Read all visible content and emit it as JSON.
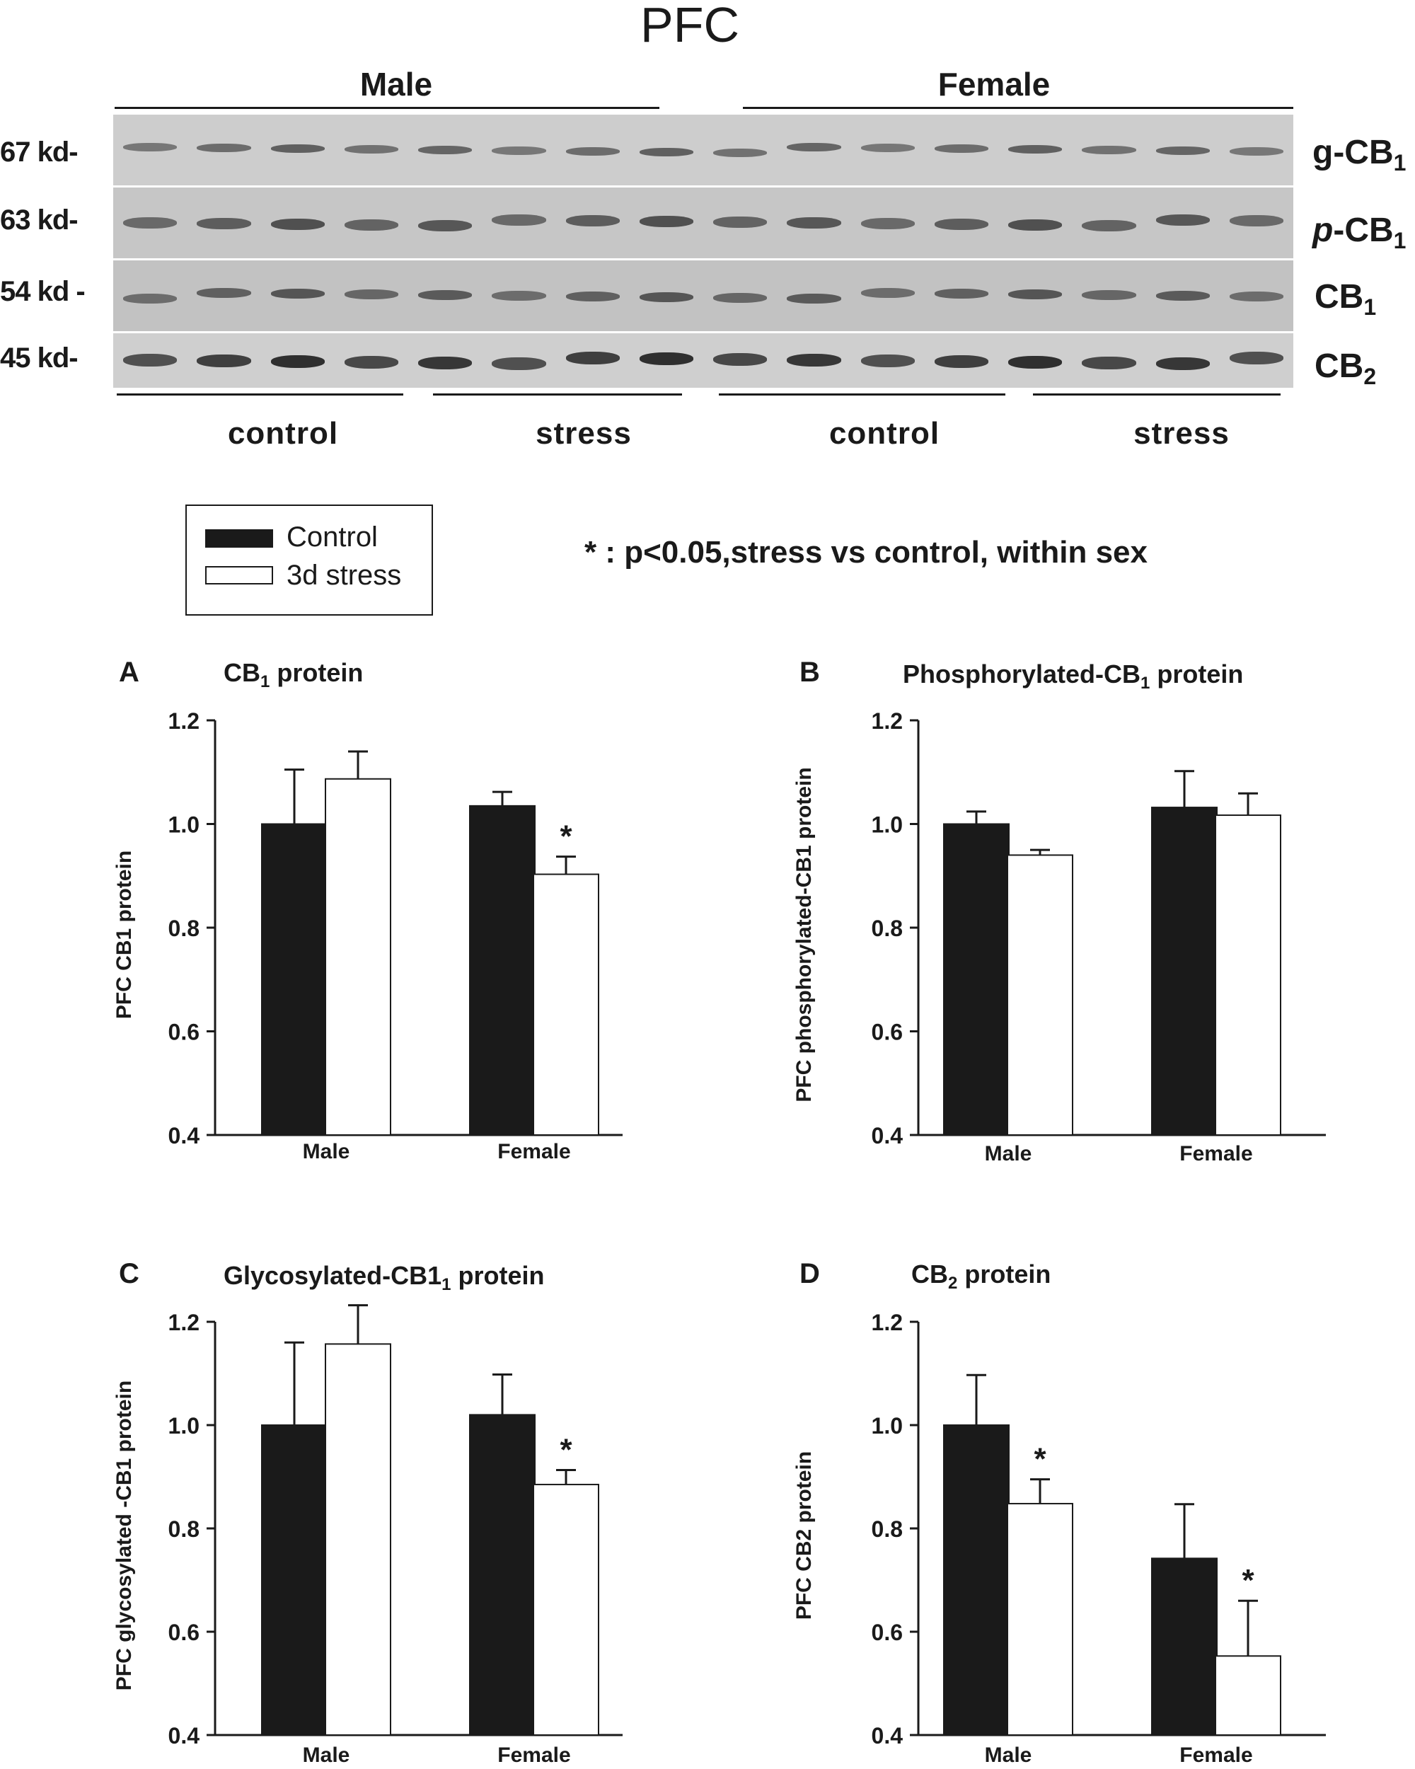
{
  "figure_title": "PFC",
  "blot": {
    "sex_labels": [
      "Male",
      "Female"
    ],
    "kd_labels": [
      "67 kd-",
      "63 kd-",
      "54 kd -",
      "45 kd-"
    ],
    "band_names": [
      {
        "main": "g-CB",
        "sub": "1"
      },
      {
        "main": "p",
        "rest": "-CB",
        "sub": "1"
      },
      {
        "main": "CB",
        "sub": "1"
      },
      {
        "main": "CB",
        "sub": "2"
      }
    ],
    "group_labels": [
      "control",
      "stress",
      "control",
      "stress"
    ]
  },
  "legend": {
    "control": "Control",
    "stress": "3d stress",
    "control_color": "#1a1a1a",
    "stress_color": "#ffffff"
  },
  "significance_note": "* : p<0.05,stress vs control, within sex",
  "panels": [
    {
      "letter": "A",
      "title_main": "CB",
      "title_sub": "1",
      "title_rest": " protein"
    },
    {
      "letter": "B",
      "title_main": "Phosphorylated-CB",
      "title_sub": "1",
      "title_rest": " protein"
    },
    {
      "letter": "C",
      "title_main": "Glycosylated-CB1",
      "title_sub": "1",
      "title_rest": " protein"
    },
    {
      "letter": "D",
      "title_main": "CB",
      "title_sub": "2",
      "title_rest": " protein"
    }
  ],
  "chart_data": [
    {
      "type": "bar",
      "categories": [
        "Male",
        "Female"
      ],
      "ylabel": "PFC CB1 protein",
      "ylim": [
        0.4,
        1.2
      ],
      "yticks": [
        "0.4",
        "0.6",
        "0.8",
        "1.0",
        "1.2"
      ],
      "series": [
        {
          "name": "Control",
          "values": [
            1.0,
            1.035
          ],
          "errors": [
            0.105,
            0.027
          ]
        },
        {
          "name": "3d stress",
          "values": [
            1.087,
            0.903
          ],
          "errors": [
            0.053,
            0.034
          ]
        }
      ],
      "significance": [
        [
          false,
          false
        ],
        [
          false,
          true
        ]
      ]
    },
    {
      "type": "bar",
      "categories": [
        "Male",
        "Female"
      ],
      "ylabel": "PFC phosphorylated-CB1 protein",
      "ylim": [
        0.4,
        1.2
      ],
      "yticks": [
        "0.4",
        "0.6",
        "0.8",
        "1.0",
        "1.2"
      ],
      "series": [
        {
          "name": "Control",
          "values": [
            1.0,
            1.032
          ],
          "errors": [
            0.024,
            0.07
          ]
        },
        {
          "name": "3d stress",
          "values": [
            0.94,
            1.017
          ],
          "errors": [
            0.01,
            0.042
          ]
        }
      ],
      "significance": [
        [
          false,
          false
        ],
        [
          false,
          false
        ]
      ]
    },
    {
      "type": "bar",
      "categories": [
        "Male",
        "Female"
      ],
      "ylabel": "PFC glycosylated -CB1 protein",
      "ylim": [
        0.4,
        1.2
      ],
      "yticks": [
        "0.4",
        "0.6",
        "0.8",
        "1.0",
        "1.2"
      ],
      "series": [
        {
          "name": "Control",
          "values": [
            1.0,
            1.02
          ],
          "errors": [
            0.16,
            0.078
          ]
        },
        {
          "name": "3d stress",
          "values": [
            1.157,
            0.885
          ],
          "errors": [
            0.075,
            0.028
          ]
        }
      ],
      "significance": [
        [
          false,
          false
        ],
        [
          false,
          true
        ]
      ]
    },
    {
      "type": "bar",
      "categories": [
        "Male",
        "Female"
      ],
      "ylabel": "PFC CB2 protein",
      "ylim": [
        0.4,
        1.2
      ],
      "yticks": [
        "0.4",
        "0.6",
        "0.8",
        "1.0",
        "1.2"
      ],
      "series": [
        {
          "name": "Control",
          "values": [
            1.0,
            0.742
          ],
          "errors": [
            0.097,
            0.105
          ]
        },
        {
          "name": "3d stress",
          "values": [
            0.848,
            0.553
          ],
          "errors": [
            0.047,
            0.107
          ]
        }
      ],
      "significance": [
        [
          false,
          false
        ],
        [
          true,
          true
        ]
      ]
    }
  ]
}
